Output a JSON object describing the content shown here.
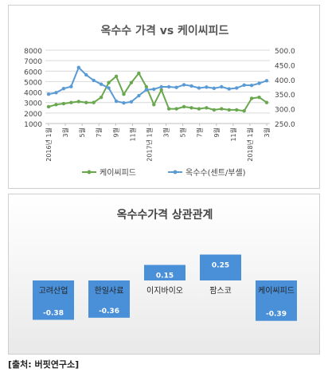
{
  "chart_data": [
    {
      "type": "line",
      "title": "옥수수 가격 vs 케이씨피드",
      "x_tick_labels": [
        "2016년 1월",
        "3월",
        "5월",
        "7월",
        "9월",
        "11월",
        "2017년 1월",
        "3월",
        "5월",
        "7월",
        "9월",
        "11월",
        "2018년 1월",
        "3월"
      ],
      "y_left": {
        "ticks": [
          "1000",
          "2000",
          "3000",
          "4000",
          "5000",
          "6000",
          "7000",
          "8000"
        ],
        "range": [
          1000,
          8000
        ]
      },
      "y_right": {
        "ticks": [
          "250.0",
          "300.0",
          "350.0",
          "400.0",
          "450.0",
          "500.0"
        ],
        "range": [
          250,
          500
        ]
      },
      "grid": true,
      "legend_position": "bottom",
      "series": [
        {
          "name": "케이씨피드",
          "axis": "left",
          "color": "#6aa84f",
          "values": [
            2600,
            2800,
            2900,
            3000,
            3100,
            3000,
            3000,
            3500,
            4900,
            5500,
            3800,
            4900,
            5800,
            4500,
            2800,
            4200,
            2400,
            2400,
            2600,
            2500,
            2400,
            2500,
            2300,
            2400,
            2300,
            2300,
            2200,
            3400,
            3500,
            3000
          ]
        },
        {
          "name": "옥수수(센트/부셸)",
          "axis": "right",
          "color": "#5b9bd5",
          "values": [
            350,
            355,
            369,
            376,
            441,
            416,
            397,
            384,
            371,
            326,
            320,
            324,
            345,
            365,
            367,
            375,
            375,
            373,
            382,
            378,
            371,
            374,
            370,
            375,
            368,
            371,
            381,
            380,
            387,
            396
          ]
        }
      ]
    },
    {
      "type": "bar",
      "title": "옥수수가격 상관관계",
      "categories": [
        "고려산업",
        "한일사료",
        "이지바이오",
        "팜스코",
        "케이씨피드"
      ],
      "values": [
        -0.38,
        -0.36,
        0.15,
        0.25,
        -0.39
      ],
      "value_labels": [
        "-0.38",
        "-0.36",
        "0.15",
        "0.25",
        "-0.39"
      ],
      "bar_color": "#4a90d9",
      "grid": false
    }
  ],
  "source_text": "[출처: 버핏연구소]"
}
